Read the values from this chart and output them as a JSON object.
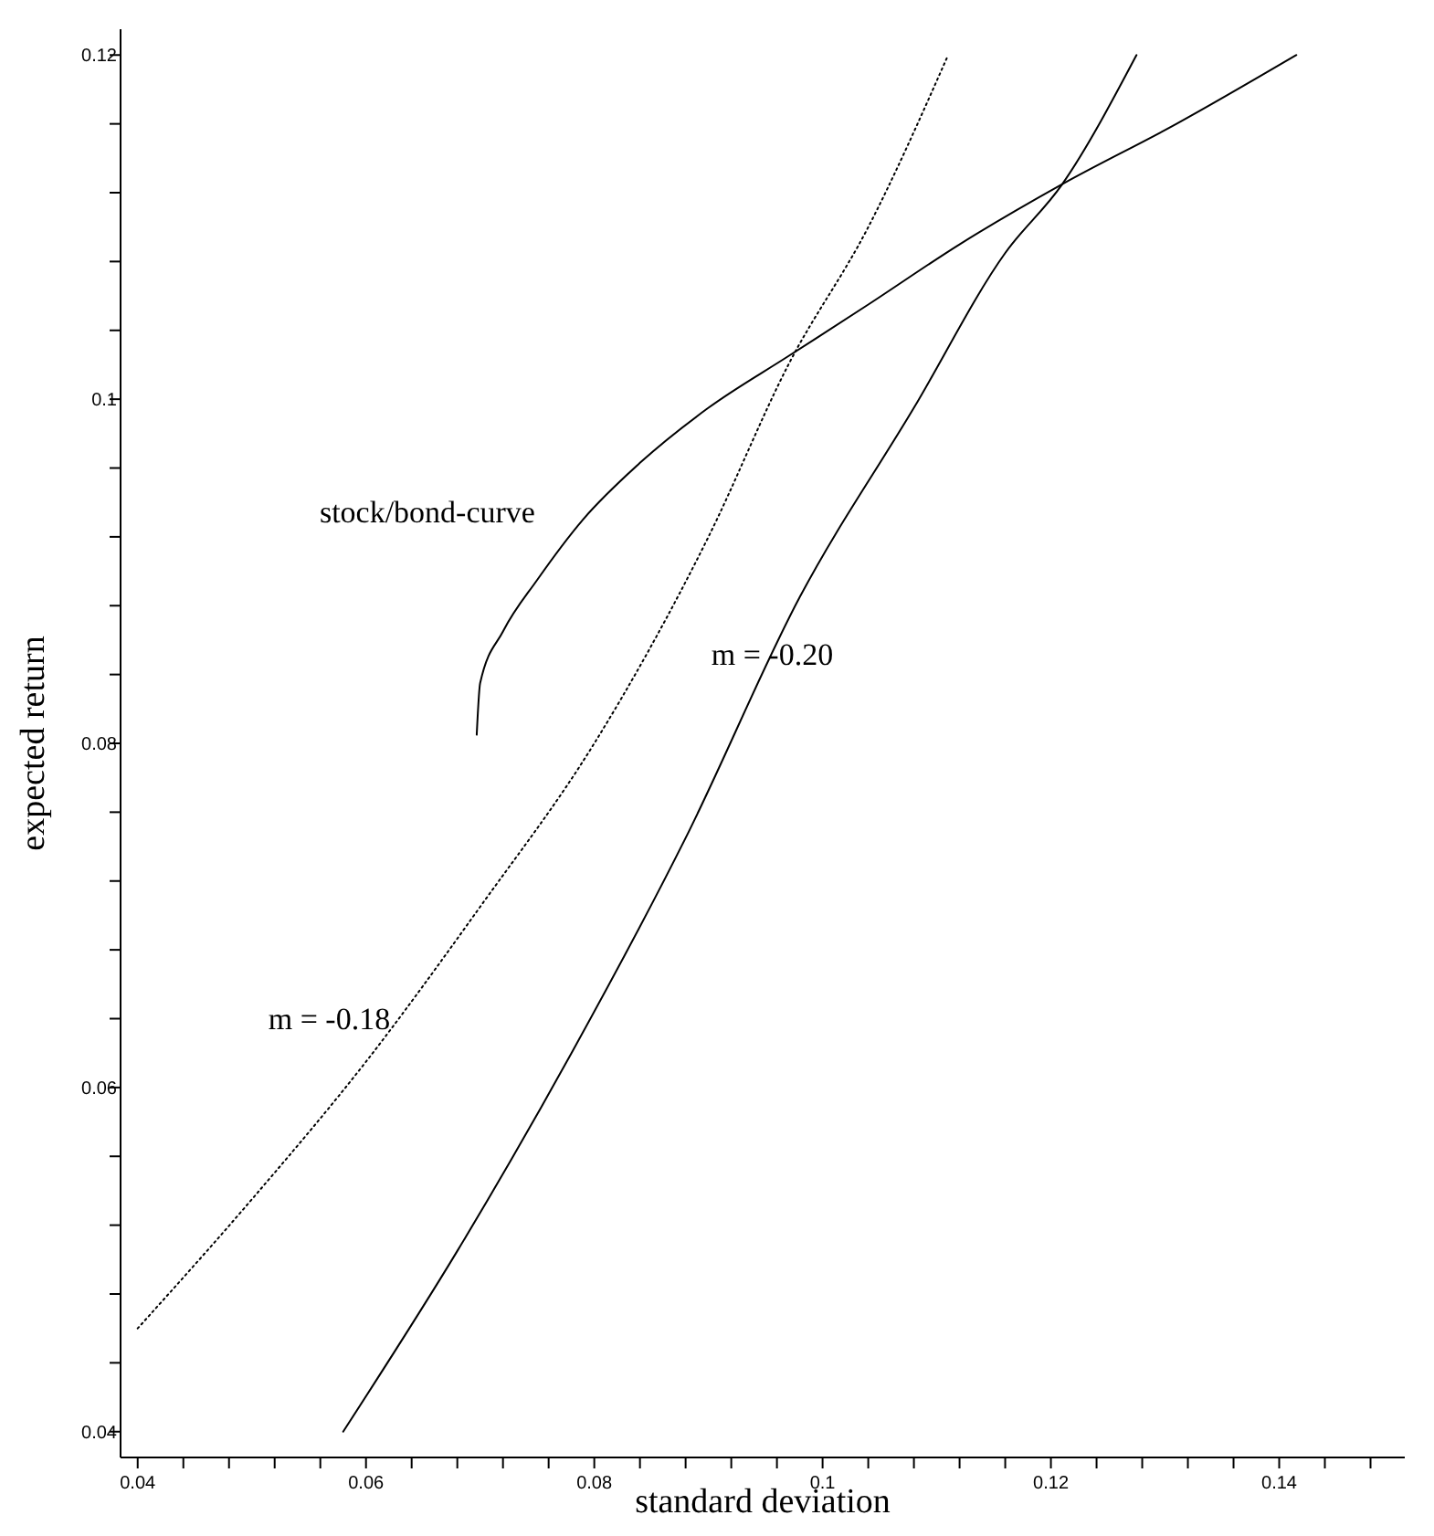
{
  "chart_data": {
    "type": "line",
    "xlabel": "standard deviation",
    "ylabel": "expected return",
    "xlim": [
      0.0385,
      0.151
    ],
    "ylim": [
      0.0385,
      0.1215
    ],
    "xticks": [
      0.04,
      {
        "value": 0.044,
        "label": null
      },
      {
        "value": 0.048,
        "label": null
      },
      {
        "value": 0.052,
        "label": null
      },
      {
        "value": 0.056,
        "label": null
      },
      0.06,
      {
        "value": 0.064,
        "label": null
      },
      {
        "value": 0.068,
        "label": null
      },
      {
        "value": 0.072,
        "label": null
      },
      {
        "value": 0.076,
        "label": null
      },
      0.08,
      {
        "value": 0.084,
        "label": null
      },
      {
        "value": 0.088,
        "label": null
      },
      {
        "value": 0.092,
        "label": null
      },
      {
        "value": 0.096,
        "label": null
      },
      0.1,
      {
        "value": 0.104,
        "label": null
      },
      {
        "value": 0.108,
        "label": null
      },
      {
        "value": 0.112,
        "label": null
      },
      {
        "value": 0.116,
        "label": null
      },
      0.12,
      {
        "value": 0.124,
        "label": null
      },
      {
        "value": 0.128,
        "label": null
      },
      {
        "value": 0.132,
        "label": null
      },
      {
        "value": 0.136,
        "label": null
      },
      0.14,
      {
        "value": 0.144,
        "label": null
      },
      {
        "value": 0.148,
        "label": null
      }
    ],
    "yticks": [
      0.04,
      {
        "value": 0.044,
        "label": null
      },
      {
        "value": 0.048,
        "label": null
      },
      {
        "value": 0.052,
        "label": null
      },
      {
        "value": 0.056,
        "label": null
      },
      0.06,
      {
        "value": 0.064,
        "label": null
      },
      {
        "value": 0.068,
        "label": null
      },
      {
        "value": 0.072,
        "label": null
      },
      {
        "value": 0.076,
        "label": null
      },
      0.08,
      {
        "value": 0.084,
        "label": null
      },
      {
        "value": 0.088,
        "label": null
      },
      {
        "value": 0.092,
        "label": null
      },
      {
        "value": 0.096,
        "label": null
      },
      0.1,
      {
        "value": 0.104,
        "label": null
      },
      {
        "value": 0.108,
        "label": null
      },
      {
        "value": 0.112,
        "label": null
      },
      {
        "value": 0.116,
        "label": null
      },
      0.12
    ],
    "grid": false,
    "series": [
      {
        "color": "#000000",
        "line_style": "solid",
        "x": [
          0.0697,
          0.07,
          0.072,
          0.075,
          0.079,
          0.084,
          0.09,
          0.097,
          0.104,
          0.112,
          0.121,
          0.131,
          0.1415
        ],
        "values": [
          0.0805,
          0.0835,
          0.0865,
          0.0895,
          0.093,
          0.0963,
          0.0995,
          0.1025,
          0.1055,
          0.109,
          0.1125,
          0.116,
          0.12
        ]
      },
      {
        "color": "#000000",
        "line_style": "dotted",
        "x": [
          0.04,
          0.05,
          0.06,
          0.07,
          0.08,
          0.09,
          0.097,
          0.104,
          0.111
        ],
        "values": [
          0.046,
          0.0535,
          0.0615,
          0.0705,
          0.08,
          0.092,
          0.102,
          0.11,
          0.12
        ]
      },
      {
        "color": "#000000",
        "line_style": "solid",
        "x": [
          0.058,
          0.068,
          0.078,
          0.088,
          0.098,
          0.108,
          0.116,
          0.121,
          0.1275
        ],
        "values": [
          0.04,
          0.0505,
          0.062,
          0.0745,
          0.0885,
          0.0995,
          0.1085,
          0.1125,
          0.12
        ]
      }
    ],
    "annotations": [
      "stock/bond-curve",
      "m = -0.20",
      "m = -0.18"
    ]
  }
}
